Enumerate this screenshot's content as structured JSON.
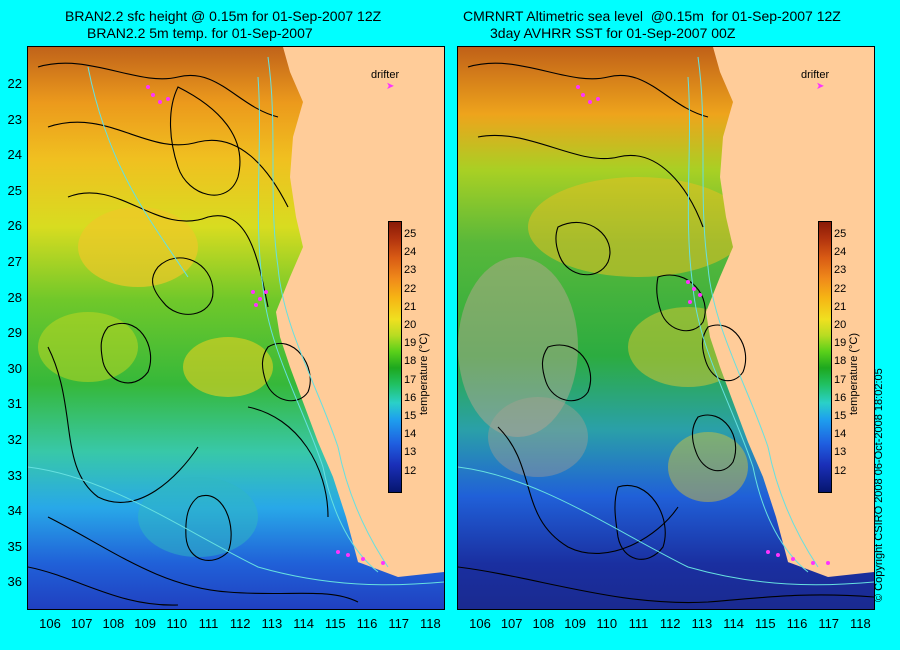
{
  "left": {
    "title1": "BRAN2.2 sfc height @ 0.15m for 01-Sep-2007 12Z",
    "title2": "BRAN2.2 5m temp. for 01-Sep-2007"
  },
  "right": {
    "title1": "CMRNRT Altimetric sea level  @0.15m  for 01-Sep-2007 12Z",
    "title2": "3day AVHRR SST for 01-Sep-2007 00Z"
  },
  "drifter_label": "drifter",
  "colorbar": {
    "ticks": [
      "25",
      "24",
      "23",
      "22",
      "21",
      "20",
      "19",
      "18",
      "17",
      "16",
      "15",
      "14",
      "13",
      "12"
    ],
    "unit": "temperature (°C)"
  },
  "lat_labels": [
    "22",
    "23",
    "24",
    "25",
    "26",
    "27",
    "28",
    "29",
    "30",
    "31",
    "32",
    "33",
    "34",
    "35",
    "36"
  ],
  "lon_labels": [
    "106",
    "107",
    "108",
    "109",
    "110",
    "111",
    "112",
    "113",
    "114",
    "115",
    "116",
    "117",
    "118"
  ],
  "copyright": "© Copyright CSIRO 2008   06-Oct-2008 18:02:05",
  "colors": {
    "background": "#00ffff",
    "land": "#ffcc99",
    "drifter": "#ff33ff",
    "contour": "#000000",
    "bathymetry": "#66e0e0"
  }
}
